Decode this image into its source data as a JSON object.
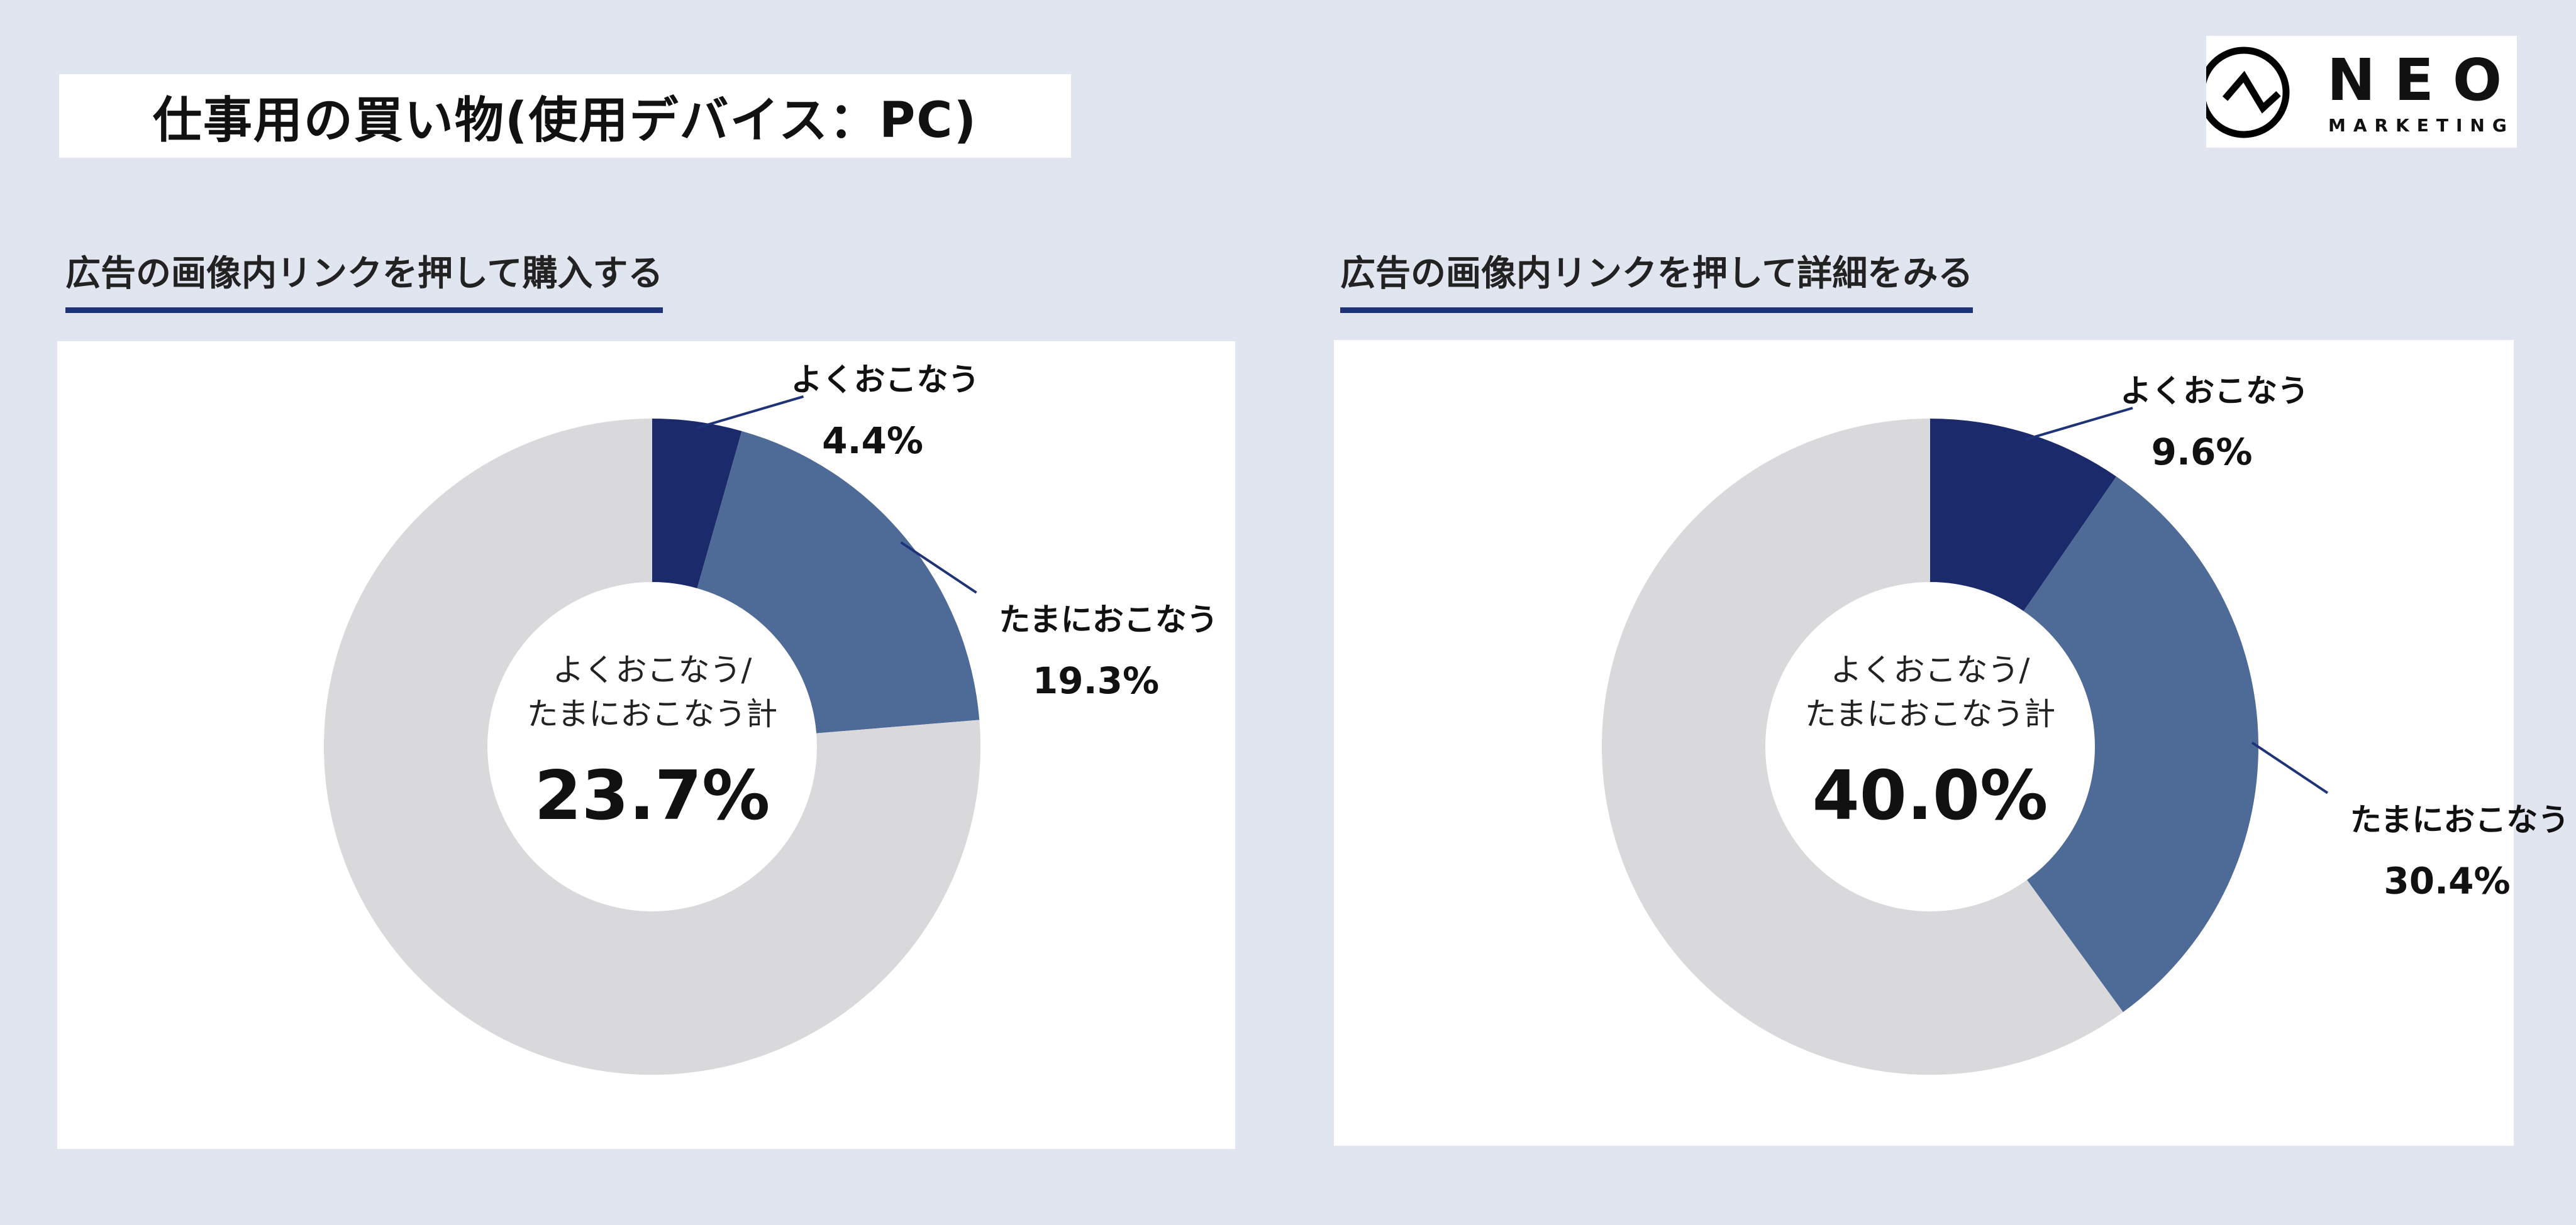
{
  "header": {
    "title": "仕事用の買い物(使用デバイス：PC)"
  },
  "logo": {
    "text": "NEO",
    "subtext": "MARKETING"
  },
  "colors": {
    "often": "#1b2a6b",
    "sometimes": "#4e6b97",
    "rest": "#d9d8da",
    "background": "#e0e5ef"
  },
  "chart_data": [
    {
      "type": "pie",
      "title": "広告の画像内リンクを押して購入する",
      "slices": [
        {
          "label": "よくおこなう",
          "value": 4.4,
          "display": "4.4%"
        },
        {
          "label": "たまにおこなう",
          "value": 19.3,
          "display": "19.3%"
        },
        {
          "label": "",
          "value": 76.3
        }
      ],
      "center": {
        "line1": "よくおこなう/",
        "line2": "たまにおこなう計",
        "total": "23.7%"
      }
    },
    {
      "type": "pie",
      "title": "広告の画像内リンクを押して詳細をみる",
      "slices": [
        {
          "label": "よくおこなう",
          "value": 9.6,
          "display": "9.6%"
        },
        {
          "label": "たまにおこなう",
          "value": 30.4,
          "display": "30.4%"
        },
        {
          "label": "",
          "value": 60.0
        }
      ],
      "center": {
        "line1": "よくおこなう/",
        "line2": "たまにおこなう計",
        "total": "40.0%"
      }
    }
  ]
}
